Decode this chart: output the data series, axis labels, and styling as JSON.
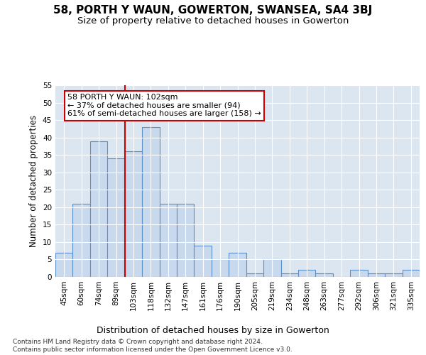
{
  "title": "58, PORTH Y WAUN, GOWERTON, SWANSEA, SA4 3BJ",
  "subtitle": "Size of property relative to detached houses in Gowerton",
  "xlabel": "Distribution of detached houses by size in Gowerton",
  "ylabel": "Number of detached properties",
  "bar_values": [
    7,
    21,
    39,
    34,
    36,
    43,
    21,
    21,
    9,
    5,
    7,
    1,
    5,
    1,
    2,
    1,
    0,
    2,
    1,
    1,
    2
  ],
  "categories": [
    "45sqm",
    "60sqm",
    "74sqm",
    "89sqm",
    "103sqm",
    "118sqm",
    "132sqm",
    "147sqm",
    "161sqm",
    "176sqm",
    "190sqm",
    "205sqm",
    "219sqm",
    "234sqm",
    "248sqm",
    "263sqm",
    "277sqm",
    "292sqm",
    "306sqm",
    "321sqm",
    "335sqm"
  ],
  "bar_color": "#c9d9ed",
  "bar_edge_color": "#5b8fc9",
  "bar_edge_width": 0.8,
  "vline_x": 3.5,
  "vline_color": "#cc0000",
  "annotation_line1": "58 PORTH Y WAUN: 102sqm",
  "annotation_line2": "← 37% of detached houses are smaller (94)",
  "annotation_line3": "61% of semi-detached houses are larger (158) →",
  "annotation_box_color": "#ffffff",
  "annotation_box_edge_color": "#cc0000",
  "ylim": [
    0,
    55
  ],
  "yticks": [
    0,
    5,
    10,
    15,
    20,
    25,
    30,
    35,
    40,
    45,
    50,
    55
  ],
  "plot_bg_color": "#dce6f1",
  "title_fontsize": 11,
  "subtitle_fontsize": 9.5,
  "xlabel_fontsize": 9,
  "ylabel_fontsize": 8.5,
  "tick_fontsize": 7.5,
  "annotation_fontsize": 8,
  "footer_text": "Contains HM Land Registry data © Crown copyright and database right 2024.\nContains public sector information licensed under the Open Government Licence v3.0.",
  "footer_fontsize": 6.5
}
